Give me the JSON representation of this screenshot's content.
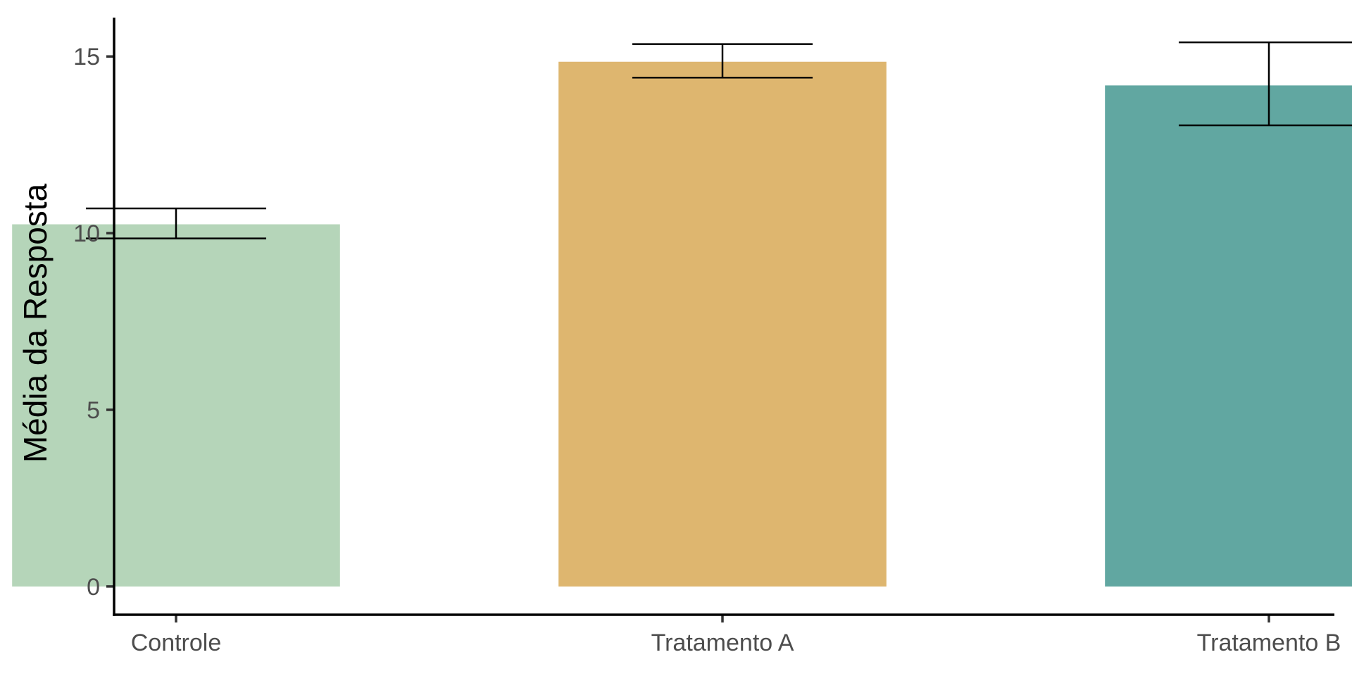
{
  "chart_data": {
    "type": "bar",
    "title": "",
    "xlabel": "",
    "ylabel": "Média da Resposta",
    "categories": [
      "Controle",
      "Tratamento A",
      "Tratamento B"
    ],
    "values": [
      10.25,
      14.85,
      14.18
    ],
    "error_lower": [
      9.85,
      14.4,
      13.05
    ],
    "error_upper": [
      10.7,
      15.35,
      15.4
    ],
    "colors": [
      "#b5d5b9",
      "#deb66f",
      "#61a7a1"
    ],
    "ylim": [
      -0.8,
      16.1
    ],
    "yticks": [
      0,
      5,
      10,
      15
    ],
    "ytick_labels": [
      "0",
      "5",
      "10",
      "15"
    ],
    "grid": false,
    "legend": "none"
  }
}
